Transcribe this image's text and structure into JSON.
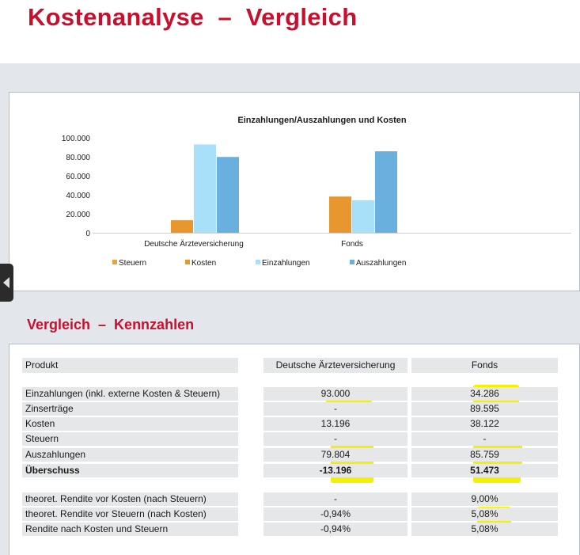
{
  "page": {
    "title": "Kostenanalyse  –  Vergleich"
  },
  "chart_data": {
    "type": "bar",
    "title": "Einzahlungen/Auszahlungen und Kosten",
    "categories": [
      "Deutsche Ärzteversicherung",
      "Fonds"
    ],
    "series": [
      {
        "name": "Steuern",
        "values": [
          0,
          0
        ],
        "color": "#e8a33d"
      },
      {
        "name": "Kosten",
        "values": [
          13196,
          38122
        ],
        "color": "#e8972e"
      },
      {
        "name": "Einzahlungen",
        "values": [
          93000,
          34286
        ],
        "color": "#a8e0fa"
      },
      {
        "name": "Auszahlungen",
        "values": [
          79804,
          85759
        ],
        "color": "#6ab0de"
      }
    ],
    "ylim": [
      0,
      100000
    ],
    "yticks": [
      "0",
      "20.000",
      "40.000",
      "60.000",
      "80.000",
      "100.000"
    ],
    "legend": "bottom",
    "grid": false
  },
  "kennzahlen": {
    "title": "Vergleich  –  Kennzahlen",
    "header": {
      "label": "Produkt",
      "col1": "Deutsche Ärzteversicherung",
      "col2": "Fonds"
    },
    "rows": [
      {
        "label": "Einzahlungen (inkl. externe Kosten & Steuern)",
        "v1": "93.000",
        "v2": "34.286"
      },
      {
        "label": "Zinserträge",
        "v1": "-",
        "v2": "89.595"
      },
      {
        "label": "Kosten",
        "v1": "13.196",
        "v2": "38.122"
      },
      {
        "label": "Steuern",
        "v1": "-",
        "v2": "-"
      },
      {
        "label": "Auszahlungen",
        "v1": "79.804",
        "v2": "85.759"
      },
      {
        "label": "Überschuss",
        "v1": "-13.196",
        "v2": "51.473"
      }
    ],
    "rendite_rows": [
      {
        "label": "theoret. Rendite vor Kosten (nach Steuern)",
        "v1": "-",
        "v2": "9,00%"
      },
      {
        "label": "theoret. Rendite vor Steuern (nach Kosten)",
        "v1": "-0,94%",
        "v2": "5,08%"
      },
      {
        "label": "Rendite nach Kosten und Steuern",
        "v1": "-0,94%",
        "v2": "5,08%"
      }
    ],
    "highlight_color": "#f4f000"
  }
}
